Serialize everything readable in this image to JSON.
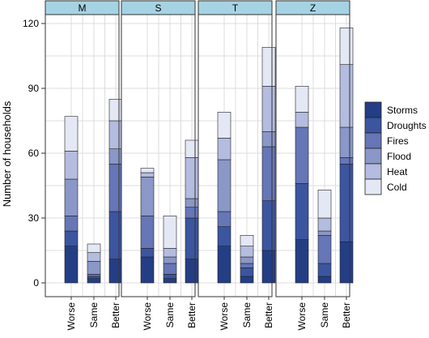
{
  "chart_data": {
    "type": "bar",
    "stacked": true,
    "ylabel": "Number of  households",
    "xlabel": "",
    "ylim": [
      0,
      120
    ],
    "yticks": [
      0,
      30,
      60,
      90,
      120
    ],
    "grid": true,
    "legend_position": "right",
    "categories": [
      "Worse",
      "Same",
      "Better"
    ],
    "panels": [
      "M",
      "S",
      "T",
      "Z"
    ],
    "series_names": [
      "Storms",
      "Droughts",
      "Fires",
      "Flood",
      "Heat",
      "Cold"
    ],
    "colors": {
      "Storms": "#243e86",
      "Droughts": "#3c55a0",
      "Fires": "#6676b6",
      "Flood": "#8a97c7",
      "Heat": "#b4bcdf",
      "Cold": "#e4e7f4"
    },
    "strip_color": "#a6d3e3",
    "data": {
      "M": {
        "Worse": [
          17,
          7,
          7,
          17,
          13,
          16
        ],
        "Same": [
          2,
          1,
          1,
          6,
          4,
          4
        ],
        "Better": [
          11,
          22,
          22,
          7,
          13,
          10
        ]
      },
      "S": {
        "Worse": [
          12,
          4,
          15,
          18,
          2,
          2
        ],
        "Same": [
          2,
          2,
          5,
          3,
          4,
          15
        ],
        "Better": [
          11,
          19,
          5,
          4,
          19,
          8
        ]
      },
      "T": {
        "Worse": [
          17,
          9,
          7,
          24,
          10,
          12
        ],
        "Same": [
          3,
          4,
          2,
          3,
          5,
          5
        ],
        "Better": [
          15,
          23,
          25,
          7,
          21,
          18
        ]
      },
      "Z": {
        "Worse": [
          20,
          26,
          26,
          0,
          7,
          12
        ],
        "Same": [
          3,
          6,
          13,
          2,
          6,
          13
        ],
        "Better": [
          19,
          36,
          3,
          14,
          29,
          17
        ]
      }
    }
  }
}
